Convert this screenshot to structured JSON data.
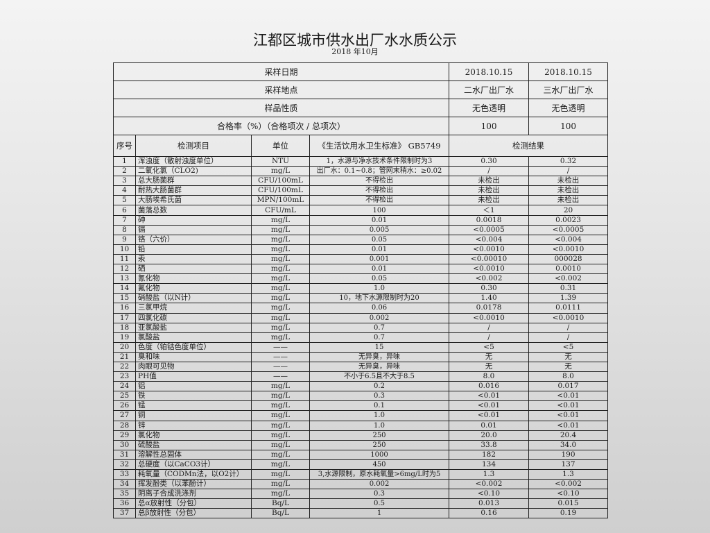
{
  "title": "江都区城市供水出厂水水质公示",
  "subtitle": "2018 年10月",
  "summary": [
    {
      "label": "采样日期",
      "values": [
        "2018.10.15",
        "2018.10.15"
      ]
    },
    {
      "label": "采样地点",
      "values": [
        "二水厂出厂水",
        "三水厂出厂水"
      ]
    },
    {
      "label": "样品性质",
      "values": [
        "无色透明",
        "无色透明"
      ]
    },
    {
      "label": "合格率（%）（合格项次 / 总项次）",
      "values": [
        "100",
        "100"
      ]
    }
  ],
  "headers": {
    "no": "序号",
    "item": "检测项目",
    "unit": "单位",
    "standard": "《生活饮用水卫生标准》 GB5749",
    "result": "检测结果"
  },
  "rows": [
    [
      "1",
      "浑浊度（散射浊度单位）",
      "NTU",
      "1，水源与净水技术条件限制时为3",
      "0.30",
      "0.32"
    ],
    [
      "2",
      "二氧化氯（CLO2)",
      "mg/L",
      "出厂水：0.1~0.8；管网末稍水：≥0.02",
      "/",
      "/"
    ],
    [
      "3",
      "总大肠菌群",
      "CFU/100mL",
      "不得检出",
      "未检出",
      "未检出"
    ],
    [
      "4",
      "耐热大肠菌群",
      "CFU/100mL",
      "不得检出",
      "未检出",
      "未检出"
    ],
    [
      "5",
      "大肠埃希氏菌",
      "MPN/100mL",
      "不得检出",
      "未检出",
      "未检出"
    ],
    [
      "6",
      "菌落总数",
      "CFU/mL",
      "100",
      "＜1",
      "20"
    ],
    [
      "7",
      "砷",
      "mg/L",
      "0.01",
      "0.0018",
      "0.0023"
    ],
    [
      "8",
      "镉",
      "mg/L",
      "0.005",
      "<0.0005",
      "<0.0005"
    ],
    [
      "9",
      "铬（六价）",
      "mg/L",
      "0.05",
      "<0.004",
      "<0.004"
    ],
    [
      "10",
      "铅",
      "mg/L",
      "0.01",
      "<0.0010",
      "<0.0010"
    ],
    [
      "11",
      "汞",
      "mg/L",
      "0.001",
      "<0.00010",
      "000028"
    ],
    [
      "12",
      "硒",
      "mg/L",
      "0.01",
      "<0.0010",
      "0.0010"
    ],
    [
      "13",
      "氰化物",
      "mg/L",
      "0.05",
      "<0.002",
      "<0.002"
    ],
    [
      "14",
      "氟化物",
      "mg/L",
      "1.0",
      "0.30",
      "0.31"
    ],
    [
      "15",
      "硝酸盐（以N计）",
      "mg/L",
      "10，地下水源限制时为20",
      "1.40",
      "1.39"
    ],
    [
      "16",
      "三氯甲烷",
      "mg/L",
      "0.06",
      "0.0178",
      "0.0111"
    ],
    [
      "17",
      "四氯化碳",
      "mg/L",
      "0.002",
      "<0.0010",
      "<0.0010"
    ],
    [
      "18",
      "亚氯酸盐",
      "mg/L",
      "0.7",
      "/",
      "/"
    ],
    [
      "19",
      "氯酸盐",
      "mg/L",
      "0.7",
      "/",
      "/"
    ],
    [
      "20",
      "色度（铂钴色度单位）",
      "——",
      "15",
      "<5",
      "<5"
    ],
    [
      "21",
      "臭和味",
      "——",
      "无异臭，异味",
      "无",
      "无"
    ],
    [
      "22",
      "肉眼可见物",
      "——",
      "无异臭，异味",
      "无",
      "无"
    ],
    [
      "23",
      "PH值",
      "——",
      "不小于6.5且不大于8.5",
      "8.0",
      "8.0"
    ],
    [
      "24",
      "铝",
      "mg/L",
      "0.2",
      "0.016",
      "0.017"
    ],
    [
      "25",
      "铁",
      "mg/L",
      "0.3",
      "<0.01",
      "<0.01"
    ],
    [
      "26",
      "锰",
      "mg/L",
      "0.1",
      "<0.01",
      "<0.01"
    ],
    [
      "27",
      "铜",
      "mg/L",
      "1.0",
      "<0.01",
      "<0.01"
    ],
    [
      "28",
      "锌",
      "mg/L",
      "1.0",
      "0.01",
      "<0.01"
    ],
    [
      "29",
      "氯化物",
      "mg/L",
      "250",
      "20.0",
      "20.4"
    ],
    [
      "30",
      "硫酸盐",
      "mg/L",
      "250",
      "33.8",
      "34.0"
    ],
    [
      "31",
      "溶解性总固体",
      "mg/L",
      "1000",
      "182",
      "190"
    ],
    [
      "32",
      "总硬度（以CaCO3计）",
      "mg/L",
      "450",
      "134",
      "137"
    ],
    [
      "33",
      "耗氧量（CODMn法，以O2计）",
      "mg/L",
      "3,水源限制，原水耗氧量>6mg/L时为5",
      "1.3",
      "1.3"
    ],
    [
      "34",
      "挥发酚类（以苯酚计）",
      "mg/L",
      "0.002",
      "<0.002",
      "<0.002"
    ],
    [
      "35",
      "阴离子合成洗涤剂",
      "mg/L",
      "0.3",
      "<0.10",
      "<0.10"
    ],
    [
      "36",
      "总α放射性（分包）",
      "Bq/L",
      "0.5",
      "0.013",
      "0.015"
    ],
    [
      "37",
      "总β放射性（分包）",
      "Bq/L",
      "1",
      "0.16",
      "0.19"
    ]
  ]
}
